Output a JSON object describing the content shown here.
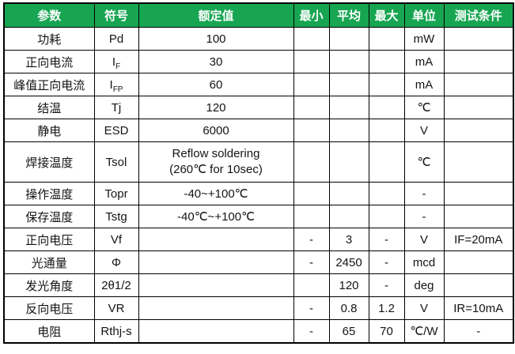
{
  "colors": {
    "header_bg": "#17a551",
    "header_text": "#ffffff",
    "border": "#000000",
    "body_text": "#141414"
  },
  "table": {
    "headers": [
      "参数",
      "符号",
      "额定值",
      "最小",
      "平均",
      "最大",
      "单位",
      "测试条件"
    ],
    "rows": [
      {
        "param": "功耗",
        "symbol": "Pd",
        "sub": "",
        "rated": "100",
        "rated2": "",
        "min": "",
        "avg": "",
        "max": "",
        "unit": "mW",
        "cond": "",
        "tall": false
      },
      {
        "param": "正向电流",
        "symbol": "I",
        "sub": "F",
        "rated": "30",
        "rated2": "",
        "min": "",
        "avg": "",
        "max": "",
        "unit": "mA",
        "cond": "",
        "tall": false
      },
      {
        "param": "峰值正向电流",
        "symbol": "I",
        "sub": "FP",
        "rated": "60",
        "rated2": "",
        "min": "",
        "avg": "",
        "max": "",
        "unit": "mA",
        "cond": "",
        "tall": false
      },
      {
        "param": "结温",
        "symbol": "Tj",
        "sub": "",
        "rated": "120",
        "rated2": "",
        "min": "",
        "avg": "",
        "max": "",
        "unit": "℃",
        "cond": "",
        "tall": false
      },
      {
        "param": "静电",
        "symbol": "ESD",
        "sub": "",
        "rated": "6000",
        "rated2": "",
        "min": "",
        "avg": "",
        "max": "",
        "unit": "V",
        "cond": "",
        "tall": false
      },
      {
        "param": "焊接温度",
        "symbol": "Tsol",
        "sub": "",
        "rated": "Reflow soldering",
        "rated2": "(260℃ for 10sec)",
        "min": "",
        "avg": "",
        "max": "",
        "unit": "℃",
        "cond": "",
        "tall": true
      },
      {
        "param": "操作温度",
        "symbol": "Topr",
        "sub": "",
        "rated": "-40~+100℃",
        "rated2": "",
        "min": "",
        "avg": "",
        "max": "",
        "unit": "-",
        "cond": "",
        "tall": false
      },
      {
        "param": "保存温度",
        "symbol": "Tstg",
        "sub": "",
        "rated": "-40℃~+100℃",
        "rated2": "",
        "min": "",
        "avg": "",
        "max": "",
        "unit": "-",
        "cond": "",
        "tall": false
      },
      {
        "param": "正向电压",
        "symbol": "Vf",
        "sub": "",
        "rated": "",
        "rated2": "",
        "min": "-",
        "avg": "3",
        "max": "-",
        "unit": "V",
        "cond": "IF=20mA",
        "tall": false
      },
      {
        "param": "光通量",
        "symbol": "Φ",
        "sub": "",
        "rated": "",
        "rated2": "",
        "min": "-",
        "avg": "2450",
        "max": "-",
        "unit": "mcd",
        "cond": "",
        "tall": false
      },
      {
        "param": "发光角度",
        "symbol": "2θ1/2",
        "sub": "",
        "rated": "",
        "rated2": "",
        "min": "",
        "avg": "120",
        "max": "-",
        "unit": "deg",
        "cond": "",
        "tall": false
      },
      {
        "param": "反向电压",
        "symbol": "VR",
        "sub": "",
        "rated": "",
        "rated2": "",
        "min": "-",
        "avg": "0.8",
        "max": "1.2",
        "unit": "V",
        "cond": "IR=10mA",
        "tall": false
      },
      {
        "param": "电阻",
        "symbol": "Rthj-s",
        "sub": "",
        "rated": "",
        "rated2": "",
        "min": "-",
        "avg": "65",
        "max": "70",
        "unit": "℃/W",
        "cond": "-",
        "tall": false
      }
    ]
  }
}
